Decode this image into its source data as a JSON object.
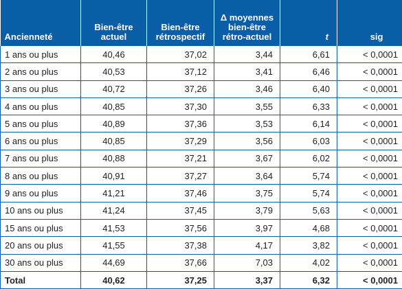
{
  "table": {
    "headers": {
      "anciennete": "Ancienneté",
      "actuel": "Bien-être actuel",
      "retrospectif": "Bien-être rétrospectif",
      "delta": "Δ moyennes bien-être rétro-actuel",
      "t": "t",
      "sig": "sig"
    },
    "rows": [
      [
        "1 ans ou plus",
        "40,46",
        "37,02",
        "3,44",
        "6,61",
        "< 0,0001"
      ],
      [
        "2 ans ou plus",
        "40,53",
        "37,12",
        "3,41",
        "6,46",
        "< 0,0001"
      ],
      [
        "3 ans ou plus",
        "40,72",
        "37,26",
        "3,46",
        "6,40",
        "< 0,0001"
      ],
      [
        "4 ans ou plus",
        "40,85",
        "37,30",
        "3,55",
        "6,33",
        "< 0,0001"
      ],
      [
        "5 ans ou plus",
        "40,89",
        "37,36",
        "3,53",
        "6,14",
        "< 0,0001"
      ],
      [
        "6 ans ou plus",
        "40,85",
        "37,29",
        "3,56",
        "6,03",
        "< 0,0001"
      ],
      [
        "7 ans ou plus",
        "40,88",
        "37,21",
        "3,67",
        "6,02",
        "< 0,0001"
      ],
      [
        "8 ans ou plus",
        "40,91",
        "37,27",
        "3,64",
        "5,74",
        "< 0,0001"
      ],
      [
        "9 ans ou plus",
        "41,21",
        "37,46",
        "3,75",
        "5,74",
        "< 0,0001"
      ],
      [
        "10 ans ou plus",
        "41,24",
        "37,45",
        "3,79",
        "5,63",
        "< 0,0001"
      ],
      [
        "15 ans ou plus",
        "41,53",
        "37,56",
        "3,97",
        "4,68",
        "< 0,0001"
      ],
      [
        "20 ans ou plus",
        "41,55",
        "37,38",
        "4,17",
        "3,82",
        "< 0,0001"
      ],
      [
        "30 ans ou plus",
        "44,69",
        "37,66",
        "7,03",
        "4,02",
        "< 0,0001"
      ],
      [
        "Total",
        "40,62",
        "37,25",
        "3,37",
        "6,32",
        "< 0,0001"
      ]
    ]
  }
}
